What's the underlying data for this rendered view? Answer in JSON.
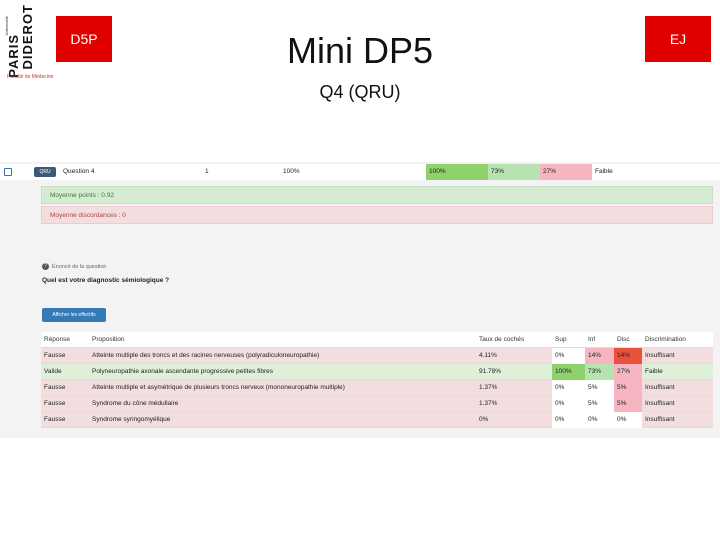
{
  "logo": {
    "paris": "PARIS",
    "diderot": "DIDEROT",
    "small": "Université",
    "faculte": "Faculté de Médecine"
  },
  "header": {
    "left_badge": "D5P",
    "right_badge": "EJ",
    "title": "Mini DP5",
    "subtitle": "Q4 (QRU)"
  },
  "colors": {
    "badge_red": "#e00000",
    "green": "#8fd16b",
    "light_green": "#b7e3b0",
    "pink": "#f7b5c1",
    "red": "#e8513a"
  },
  "question_row": {
    "type_badge": "QRU",
    "label": "Question 4",
    "number": "1",
    "percent": "100%",
    "cells": [
      "100%",
      "73%",
      "27%",
      "Faible"
    ]
  },
  "panels": {
    "average_points": "Moyenne points : 0.92",
    "average_discordances": "Moyenne discordances : 0"
  },
  "statement_toggle": "Énoncé de la question",
  "question_text": "Quel est votre diagnostic sémiologique ?",
  "show_button": "Afficher les effectifs",
  "table": {
    "headers": [
      "Réponse",
      "Proposition",
      "Taux de cochés",
      "Sup",
      "Inf",
      "Disc",
      "Discrimination"
    ],
    "rows": [
      {
        "answer": "Fausse",
        "proposition": "Atteinte multiple des troncs et des racines nerveuses (polyradiculoneuropathie)",
        "rate": "4.11%",
        "sup": "0%",
        "inf": "14%",
        "disc": "14%",
        "discrimination": "Insuffisant"
      },
      {
        "answer": "Valide",
        "proposition": "Polyneuropathie axonale ascendante progressive petites fibres",
        "rate": "91.78%",
        "sup": "100%",
        "inf": "73%",
        "disc": "27%",
        "discrimination": "Faible"
      },
      {
        "answer": "Fausse",
        "proposition": "Atteinte multiple et asymétrique de plusieurs troncs nerveux (mononeuropathie multiple)",
        "rate": "1.37%",
        "sup": "0%",
        "inf": "5%",
        "disc": "5%",
        "discrimination": "Insuffisant"
      },
      {
        "answer": "Fausse",
        "proposition": "Syndrome du cône médullaire",
        "rate": "1.37%",
        "sup": "0%",
        "inf": "5%",
        "disc": "5%",
        "discrimination": "Insuffisant"
      },
      {
        "answer": "Fausse",
        "proposition": "Syndrome syringomyélique",
        "rate": "0%",
        "sup": "0%",
        "inf": "0%",
        "disc": "0%",
        "discrimination": "Insuffisant"
      }
    ]
  }
}
